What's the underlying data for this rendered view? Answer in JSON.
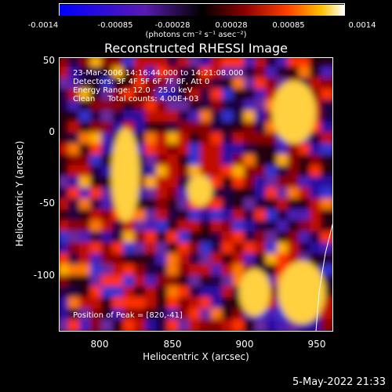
{
  "colorbar": {
    "ticks": [
      "-0.0014",
      "-0.00085",
      "-0.00028",
      "0.00028",
      "0.00085",
      "0.0014"
    ],
    "units": "(photons cm⁻² s⁻¹ asec⁻²)"
  },
  "title": "Reconstructed RHESSI Image",
  "info": {
    "time": "23-Mar-2006 14:16:44.000 to 14:21:08.000",
    "detectors": "Detectors: 3F 4F 5F 6F 7F 8F, Att 0",
    "energy": "Energy Range: 12.0 - 25.0 keV",
    "clean": "Clean     Total counts: 4.00E+03",
    "peak": "Position of Peak = [820,-41]"
  },
  "axes": {
    "xlabel": "Heliocentric X (arcsec)",
    "ylabel": "Heliocentric Y (arcsec)",
    "xticks": [
      "800",
      "850",
      "900",
      "950"
    ],
    "yticks": [
      "50",
      "0",
      "-50",
      "-100"
    ]
  },
  "timestamp": "5-May-2022 21:33"
}
